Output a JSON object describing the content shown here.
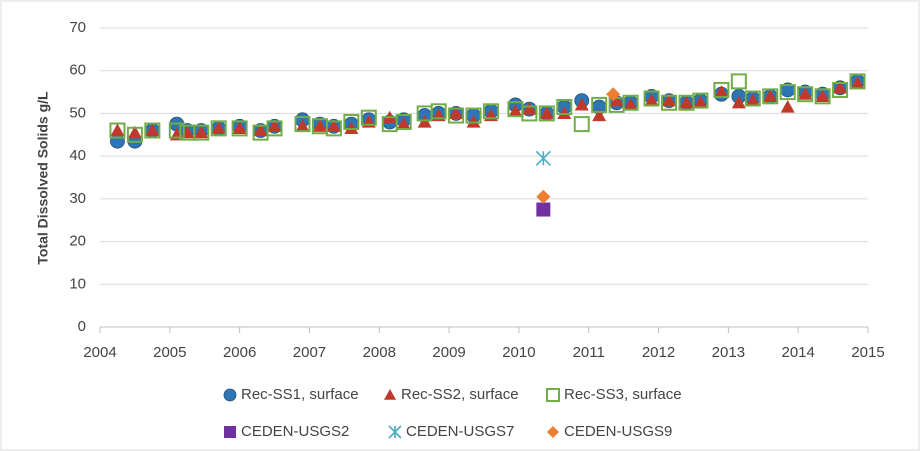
{
  "chart_data": {
    "type": "scatter",
    "ylabel": "Total Dissolved Solids g/L",
    "xlim": [
      2004,
      2015
    ],
    "xticks": [
      2004,
      2005,
      2006,
      2007,
      2008,
      2009,
      2010,
      2011,
      2012,
      2013,
      2014,
      2015
    ],
    "ylim": [
      0,
      70
    ],
    "yticks": [
      0,
      10,
      20,
      30,
      40,
      50,
      60,
      70
    ],
    "grid": true,
    "series": [
      {
        "name": "Rec-SS1, surface",
        "color": "#2e75b6",
        "marker": "circle",
        "x": [
          2004.25,
          2004.5,
          2004.75,
          2005.1,
          2005.25,
          2005.45,
          2005.7,
          2006.0,
          2006.3,
          2006.5,
          2006.9,
          2007.15,
          2007.35,
          2007.6,
          2007.85,
          2008.15,
          2008.35,
          2008.65,
          2008.85,
          2009.1,
          2009.35,
          2009.6,
          2009.95,
          2010.15,
          2010.4,
          2010.65,
          2010.9,
          2011.15,
          2011.4,
          2011.6,
          2011.9,
          2012.15,
          2012.4,
          2012.6,
          2012.9,
          2013.15,
          2013.35,
          2013.6,
          2013.85,
          2014.1,
          2014.35,
          2014.6,
          2014.85
        ],
        "values": [
          43.5,
          43.5,
          46,
          47.5,
          46,
          46,
          46.5,
          47,
          46,
          47,
          48.5,
          47.5,
          47,
          47.5,
          48.5,
          48,
          48.5,
          49.5,
          50,
          50,
          49.5,
          50.5,
          52,
          51,
          50,
          51.5,
          53,
          51.5,
          52.5,
          52.5,
          54,
          53,
          52.5,
          53,
          54.5,
          54,
          53.5,
          54,
          55.5,
          55,
          54.5,
          56,
          57.5
        ]
      },
      {
        "name": "Rec-SS2, surface",
        "color": "#c0392b",
        "marker": "triangle",
        "x": [
          2004.25,
          2004.5,
          2004.75,
          2005.1,
          2005.25,
          2005.45,
          2005.7,
          2006.0,
          2006.3,
          2006.5,
          2006.9,
          2007.15,
          2007.35,
          2007.6,
          2007.85,
          2008.15,
          2008.35,
          2008.65,
          2008.85,
          2009.1,
          2009.35,
          2009.6,
          2009.95,
          2010.15,
          2010.4,
          2010.65,
          2010.9,
          2011.15,
          2011.4,
          2011.6,
          2011.9,
          2012.15,
          2012.4,
          2012.6,
          2012.9,
          2013.15,
          2013.35,
          2013.6,
          2013.85,
          2014.1,
          2014.35,
          2014.6,
          2014.85
        ],
        "values": [
          46,
          45.5,
          46,
          45,
          45.5,
          45.5,
          46.5,
          46.5,
          46,
          47,
          47,
          47,
          47,
          46.5,
          48,
          49,
          47.5,
          48,
          49.5,
          50,
          48,
          49.5,
          50.5,
          51,
          50,
          50,
          52,
          49.5,
          53,
          52,
          53,
          53,
          52.5,
          52.5,
          55,
          52.5,
          53,
          54,
          51.5,
          54.5,
          54,
          56,
          57
        ]
      },
      {
        "name": "Rec-SS3, surface",
        "color": "#70ad47",
        "marker": "square-open",
        "x": [
          2004.25,
          2004.5,
          2004.75,
          2005.1,
          2005.25,
          2005.45,
          2005.7,
          2006.0,
          2006.3,
          2006.5,
          2006.9,
          2007.15,
          2007.35,
          2007.6,
          2007.85,
          2008.15,
          2008.35,
          2008.65,
          2008.85,
          2009.1,
          2009.35,
          2009.6,
          2009.95,
          2010.15,
          2010.4,
          2010.65,
          2010.9,
          2011.15,
          2011.4,
          2011.6,
          2011.9,
          2012.15,
          2012.4,
          2012.6,
          2012.9,
          2013.15,
          2013.35,
          2013.6,
          2013.85,
          2014.1,
          2014.35,
          2014.6,
          2014.85
        ],
        "values": [
          46,
          45,
          46,
          46,
          45.5,
          45.5,
          46.5,
          46.5,
          45.5,
          46.5,
          47.5,
          47,
          46.5,
          48,
          49,
          47.5,
          48,
          50,
          50.5,
          49.5,
          49.5,
          50.5,
          51,
          50,
          50,
          51.5,
          47.5,
          52,
          52,
          52.5,
          53.5,
          52.5,
          52.5,
          53,
          55.5,
          57.5,
          53.5,
          54,
          55,
          54.5,
          54,
          55.5,
          57.5
        ]
      },
      {
        "name": "CEDEN-USGS2",
        "color": "#7030a0",
        "marker": "square",
        "x": [
          2010.35
        ],
        "values": [
          27.5
        ]
      },
      {
        "name": "CEDEN-USGS7",
        "color": "#4bacc6",
        "marker": "x",
        "x": [
          2010.35
        ],
        "values": [
          39.5
        ]
      },
      {
        "name": "CEDEN-USGS9",
        "color": "#ed7d31",
        "marker": "diamond",
        "x": [
          2010.35,
          2011.35
        ],
        "values": [
          30.5,
          54.5
        ]
      }
    ]
  }
}
